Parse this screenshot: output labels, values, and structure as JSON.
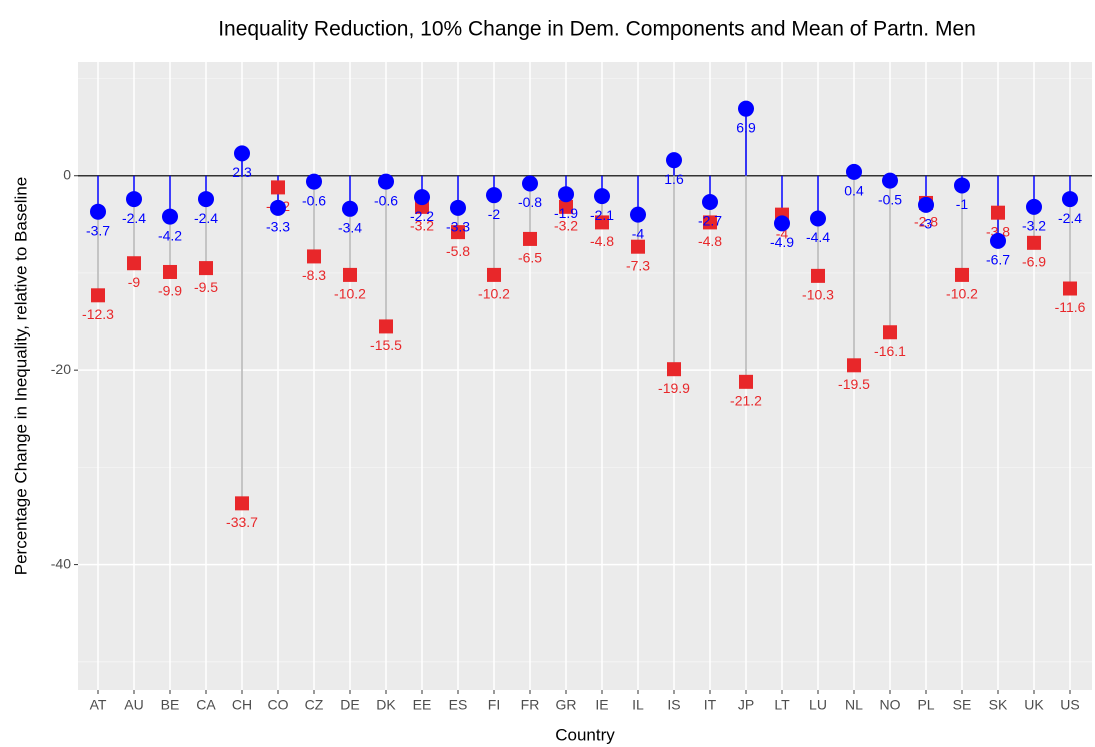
{
  "chart_data": {
    "type": "lollipop",
    "title": "Inequality Reduction, 10% Change in Dem. Components and Mean of Partn. Men",
    "x_label": "Country",
    "y_label": "Percentage Change in Inequality, relative to Baseline",
    "categories": [
      "AT",
      "AU",
      "BE",
      "CA",
      "CH",
      "CO",
      "CZ",
      "DE",
      "DK",
      "EE",
      "ES",
      "FI",
      "FR",
      "GR",
      "IE",
      "IL",
      "IS",
      "IT",
      "JP",
      "LT",
      "LU",
      "NL",
      "NO",
      "PL",
      "SE",
      "SK",
      "UK",
      "US"
    ],
    "series": [
      {
        "color": "#0000ff",
        "marker": "circle",
        "values": [
          -3.7,
          -2.4,
          -4.2,
          -2.4,
          2.3,
          -3.3,
          -0.6,
          -3.4,
          -0.6,
          -2.2,
          -3.3,
          -2,
          -0.8,
          -1.9,
          -2.1,
          -4,
          1.6,
          -2.7,
          6.9,
          -4.9,
          -4.4,
          0.4,
          -0.5,
          -3,
          -1,
          -6.7,
          -3.2,
          -2.4
        ]
      },
      {
        "color": "#e8272a",
        "marker": "square",
        "values": [
          -12.3,
          -9,
          -9.9,
          -9.5,
          -33.7,
          -1.2,
          -8.3,
          -10.2,
          -15.5,
          -3.2,
          -5.8,
          -10.2,
          -6.5,
          -3.2,
          -4.8,
          -7.3,
          -19.9,
          -4.8,
          -21.2,
          -4,
          -10.3,
          -19.5,
          -16.1,
          -2.8,
          -10.2,
          -3.8,
          -6.9,
          -11.6
        ]
      }
    ],
    "ylim": [
      -52.9,
      11.7
    ],
    "yticks": [
      -40,
      -20,
      0
    ],
    "minor_yticks": [
      -50,
      -30,
      -10,
      10
    ],
    "grid": true
  }
}
